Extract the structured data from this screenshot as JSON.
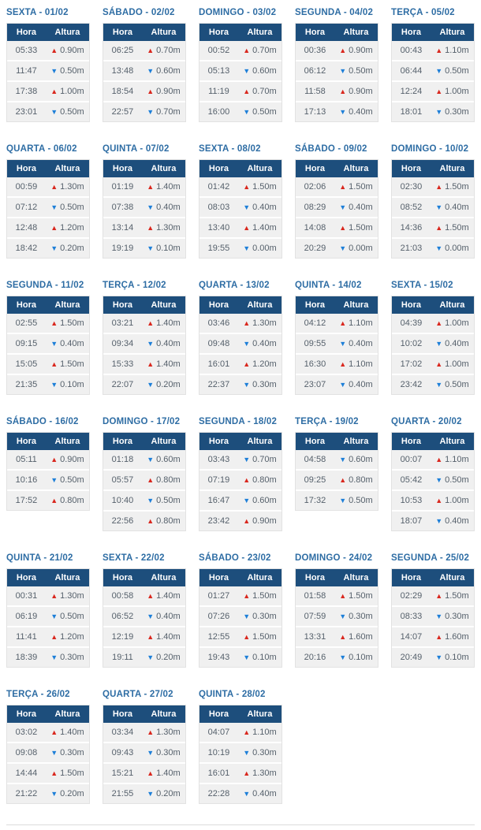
{
  "labels": {
    "hora": "Hora",
    "altura": "Altura"
  },
  "icons": {
    "tide_up": "▲",
    "tide_down": "▼"
  },
  "colors": {
    "header_bg": "#1d4e7c",
    "title_text": "#2e6da4",
    "row_bg": "#f0f0f0",
    "cell_text": "#55606b",
    "up_arrow": "#d9271e",
    "down_arrow": "#1e7fd8"
  },
  "days": [
    {
      "title": "SEXTA - 01/02",
      "tides": [
        {
          "time": "05:33",
          "dir": "up",
          "height": "0.90m"
        },
        {
          "time": "11:47",
          "dir": "down",
          "height": "0.50m"
        },
        {
          "time": "17:38",
          "dir": "up",
          "height": "1.00m"
        },
        {
          "time": "23:01",
          "dir": "down",
          "height": "0.50m"
        }
      ]
    },
    {
      "title": "SÁBADO - 02/02",
      "tides": [
        {
          "time": "06:25",
          "dir": "up",
          "height": "0.70m"
        },
        {
          "time": "13:48",
          "dir": "down",
          "height": "0.60m"
        },
        {
          "time": "18:54",
          "dir": "up",
          "height": "0.90m"
        },
        {
          "time": "22:57",
          "dir": "down",
          "height": "0.70m"
        }
      ]
    },
    {
      "title": "DOMINGO - 03/02",
      "tides": [
        {
          "time": "00:52",
          "dir": "up",
          "height": "0.70m"
        },
        {
          "time": "05:13",
          "dir": "down",
          "height": "0.60m"
        },
        {
          "time": "11:19",
          "dir": "up",
          "height": "0.70m"
        },
        {
          "time": "16:00",
          "dir": "down",
          "height": "0.50m"
        }
      ]
    },
    {
      "title": "SEGUNDA - 04/02",
      "tides": [
        {
          "time": "00:36",
          "dir": "up",
          "height": "0.90m"
        },
        {
          "time": "06:12",
          "dir": "down",
          "height": "0.50m"
        },
        {
          "time": "11:58",
          "dir": "up",
          "height": "0.90m"
        },
        {
          "time": "17:13",
          "dir": "down",
          "height": "0.40m"
        }
      ]
    },
    {
      "title": "TERÇA - 05/02",
      "tides": [
        {
          "time": "00:43",
          "dir": "up",
          "height": "1.10m"
        },
        {
          "time": "06:44",
          "dir": "down",
          "height": "0.50m"
        },
        {
          "time": "12:24",
          "dir": "up",
          "height": "1.00m"
        },
        {
          "time": "18:01",
          "dir": "down",
          "height": "0.30m"
        }
      ]
    },
    {
      "title": "QUARTA - 06/02",
      "tides": [
        {
          "time": "00:59",
          "dir": "up",
          "height": "1.30m"
        },
        {
          "time": "07:12",
          "dir": "down",
          "height": "0.50m"
        },
        {
          "time": "12:48",
          "dir": "up",
          "height": "1.20m"
        },
        {
          "time": "18:42",
          "dir": "down",
          "height": "0.20m"
        }
      ]
    },
    {
      "title": "QUINTA - 07/02",
      "tides": [
        {
          "time": "01:19",
          "dir": "up",
          "height": "1.40m"
        },
        {
          "time": "07:38",
          "dir": "down",
          "height": "0.40m"
        },
        {
          "time": "13:14",
          "dir": "up",
          "height": "1.30m"
        },
        {
          "time": "19:19",
          "dir": "down",
          "height": "0.10m"
        }
      ]
    },
    {
      "title": "SEXTA - 08/02",
      "tides": [
        {
          "time": "01:42",
          "dir": "up",
          "height": "1.50m"
        },
        {
          "time": "08:03",
          "dir": "down",
          "height": "0.40m"
        },
        {
          "time": "13:40",
          "dir": "up",
          "height": "1.40m"
        },
        {
          "time": "19:55",
          "dir": "down",
          "height": "0.00m"
        }
      ]
    },
    {
      "title": "SÁBADO - 09/02",
      "tides": [
        {
          "time": "02:06",
          "dir": "up",
          "height": "1.50m"
        },
        {
          "time": "08:29",
          "dir": "down",
          "height": "0.40m"
        },
        {
          "time": "14:08",
          "dir": "up",
          "height": "1.50m"
        },
        {
          "time": "20:29",
          "dir": "down",
          "height": "0.00m"
        }
      ]
    },
    {
      "title": "DOMINGO - 10/02",
      "tides": [
        {
          "time": "02:30",
          "dir": "up",
          "height": "1.50m"
        },
        {
          "time": "08:52",
          "dir": "down",
          "height": "0.40m"
        },
        {
          "time": "14:36",
          "dir": "up",
          "height": "1.50m"
        },
        {
          "time": "21:03",
          "dir": "down",
          "height": "0.00m"
        }
      ]
    },
    {
      "title": "SEGUNDA - 11/02",
      "tides": [
        {
          "time": "02:55",
          "dir": "up",
          "height": "1.50m"
        },
        {
          "time": "09:15",
          "dir": "down",
          "height": "0.40m"
        },
        {
          "time": "15:05",
          "dir": "up",
          "height": "1.50m"
        },
        {
          "time": "21:35",
          "dir": "down",
          "height": "0.10m"
        }
      ]
    },
    {
      "title": "TERÇA - 12/02",
      "tides": [
        {
          "time": "03:21",
          "dir": "up",
          "height": "1.40m"
        },
        {
          "time": "09:34",
          "dir": "down",
          "height": "0.40m"
        },
        {
          "time": "15:33",
          "dir": "up",
          "height": "1.40m"
        },
        {
          "time": "22:07",
          "dir": "down",
          "height": "0.20m"
        }
      ]
    },
    {
      "title": "QUARTA - 13/02",
      "tides": [
        {
          "time": "03:46",
          "dir": "up",
          "height": "1.30m"
        },
        {
          "time": "09:48",
          "dir": "down",
          "height": "0.40m"
        },
        {
          "time": "16:01",
          "dir": "up",
          "height": "1.20m"
        },
        {
          "time": "22:37",
          "dir": "down",
          "height": "0.30m"
        }
      ]
    },
    {
      "title": "QUINTA - 14/02",
      "tides": [
        {
          "time": "04:12",
          "dir": "up",
          "height": "1.10m"
        },
        {
          "time": "09:55",
          "dir": "down",
          "height": "0.40m"
        },
        {
          "time": "16:30",
          "dir": "up",
          "height": "1.10m"
        },
        {
          "time": "23:07",
          "dir": "down",
          "height": "0.40m"
        }
      ]
    },
    {
      "title": "SEXTA - 15/02",
      "tides": [
        {
          "time": "04:39",
          "dir": "up",
          "height": "1.00m"
        },
        {
          "time": "10:02",
          "dir": "down",
          "height": "0.40m"
        },
        {
          "time": "17:02",
          "dir": "up",
          "height": "1.00m"
        },
        {
          "time": "23:42",
          "dir": "down",
          "height": "0.50m"
        }
      ]
    },
    {
      "title": "SÁBADO - 16/02",
      "tides": [
        {
          "time": "05:11",
          "dir": "up",
          "height": "0.90m"
        },
        {
          "time": "10:16",
          "dir": "down",
          "height": "0.50m"
        },
        {
          "time": "17:52",
          "dir": "up",
          "height": "0.80m"
        }
      ]
    },
    {
      "title": "DOMINGO - 17/02",
      "tides": [
        {
          "time": "01:18",
          "dir": "down",
          "height": "0.60m"
        },
        {
          "time": "05:57",
          "dir": "up",
          "height": "0.80m"
        },
        {
          "time": "10:40",
          "dir": "down",
          "height": "0.50m"
        },
        {
          "time": "22:56",
          "dir": "up",
          "height": "0.80m"
        }
      ]
    },
    {
      "title": "SEGUNDA - 18/02",
      "tides": [
        {
          "time": "03:43",
          "dir": "down",
          "height": "0.70m"
        },
        {
          "time": "07:19",
          "dir": "up",
          "height": "0.80m"
        },
        {
          "time": "16:47",
          "dir": "down",
          "height": "0.60m"
        },
        {
          "time": "23:42",
          "dir": "up",
          "height": "0.90m"
        }
      ]
    },
    {
      "title": "TERÇA - 19/02",
      "tides": [
        {
          "time": "04:58",
          "dir": "down",
          "height": "0.60m"
        },
        {
          "time": "09:25",
          "dir": "up",
          "height": "0.80m"
        },
        {
          "time": "17:32",
          "dir": "down",
          "height": "0.50m"
        }
      ]
    },
    {
      "title": "QUARTA - 20/02",
      "tides": [
        {
          "time": "00:07",
          "dir": "up",
          "height": "1.10m"
        },
        {
          "time": "05:42",
          "dir": "down",
          "height": "0.50m"
        },
        {
          "time": "10:53",
          "dir": "up",
          "height": "1.00m"
        },
        {
          "time": "18:07",
          "dir": "down",
          "height": "0.40m"
        }
      ]
    },
    {
      "title": "QUINTA - 21/02",
      "tides": [
        {
          "time": "00:31",
          "dir": "up",
          "height": "1.30m"
        },
        {
          "time": "06:19",
          "dir": "down",
          "height": "0.50m"
        },
        {
          "time": "11:41",
          "dir": "up",
          "height": "1.20m"
        },
        {
          "time": "18:39",
          "dir": "down",
          "height": "0.30m"
        }
      ]
    },
    {
      "title": "SEXTA - 22/02",
      "tides": [
        {
          "time": "00:58",
          "dir": "up",
          "height": "1.40m"
        },
        {
          "time": "06:52",
          "dir": "down",
          "height": "0.40m"
        },
        {
          "time": "12:19",
          "dir": "up",
          "height": "1.40m"
        },
        {
          "time": "19:11",
          "dir": "down",
          "height": "0.20m"
        }
      ]
    },
    {
      "title": "SÁBADO - 23/02",
      "tides": [
        {
          "time": "01:27",
          "dir": "up",
          "height": "1.50m"
        },
        {
          "time": "07:26",
          "dir": "down",
          "height": "0.30m"
        },
        {
          "time": "12:55",
          "dir": "up",
          "height": "1.50m"
        },
        {
          "time": "19:43",
          "dir": "down",
          "height": "0.10m"
        }
      ]
    },
    {
      "title": "DOMINGO - 24/02",
      "tides": [
        {
          "time": "01:58",
          "dir": "up",
          "height": "1.50m"
        },
        {
          "time": "07:59",
          "dir": "down",
          "height": "0.30m"
        },
        {
          "time": "13:31",
          "dir": "up",
          "height": "1.60m"
        },
        {
          "time": "20:16",
          "dir": "down",
          "height": "0.10m"
        }
      ]
    },
    {
      "title": "SEGUNDA - 25/02",
      "tides": [
        {
          "time": "02:29",
          "dir": "up",
          "height": "1.50m"
        },
        {
          "time": "08:33",
          "dir": "down",
          "height": "0.30m"
        },
        {
          "time": "14:07",
          "dir": "up",
          "height": "1.60m"
        },
        {
          "time": "20:49",
          "dir": "down",
          "height": "0.10m"
        }
      ]
    },
    {
      "title": "TERÇA - 26/02",
      "tides": [
        {
          "time": "03:02",
          "dir": "up",
          "height": "1.40m"
        },
        {
          "time": "09:08",
          "dir": "down",
          "height": "0.30m"
        },
        {
          "time": "14:44",
          "dir": "up",
          "height": "1.50m"
        },
        {
          "time": "21:22",
          "dir": "down",
          "height": "0.20m"
        }
      ]
    },
    {
      "title": "QUARTA - 27/02",
      "tides": [
        {
          "time": "03:34",
          "dir": "up",
          "height": "1.30m"
        },
        {
          "time": "09:43",
          "dir": "down",
          "height": "0.30m"
        },
        {
          "time": "15:21",
          "dir": "up",
          "height": "1.40m"
        },
        {
          "time": "21:55",
          "dir": "down",
          "height": "0.20m"
        }
      ]
    },
    {
      "title": "QUINTA - 28/02",
      "tides": [
        {
          "time": "04:07",
          "dir": "up",
          "height": "1.10m"
        },
        {
          "time": "10:19",
          "dir": "down",
          "height": "0.30m"
        },
        {
          "time": "16:01",
          "dir": "up",
          "height": "1.30m"
        },
        {
          "time": "22:28",
          "dir": "down",
          "height": "0.40m"
        }
      ]
    }
  ]
}
